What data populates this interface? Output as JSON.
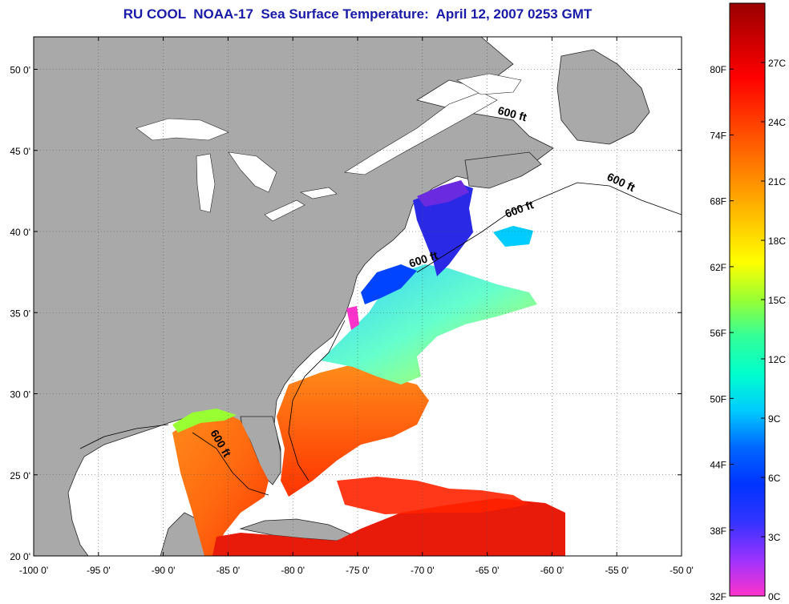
{
  "title": "RU COOL  NOAA-17  Sea Surface Temperature:  April 12, 2007 0253 GMT",
  "map": {
    "lon_range": [
      -100,
      -50
    ],
    "lat_range": [
      20,
      52
    ],
    "lon_ticks": [
      "-100 0'",
      "-95 0'",
      "-90 0'",
      "-85 0'",
      "-80 0'",
      "-75 0'",
      "-70 0'",
      "-65 0'",
      "-60 0'",
      "-55 0'",
      "-50 0'"
    ],
    "lat_ticks": [
      "50 0'",
      "45 0'",
      "40 0'",
      "35 0'",
      "30 0'",
      "25 0'",
      "20 0'"
    ],
    "contour_labels": [
      "600 ft",
      "600 ft",
      "600 ft",
      "600 ft",
      "600 ft"
    ],
    "colors": {
      "land": "#a9a9a9",
      "ocean_nodata": "#ffffff",
      "gridline": "#555555"
    }
  },
  "colorbar": {
    "fahrenheit_labels": [
      "80F",
      "74F",
      "68F",
      "62F",
      "56F",
      "50F",
      "44F",
      "38F",
      "32F"
    ],
    "celsius_labels": [
      "27C",
      "24C",
      "21C",
      "18C",
      "15C",
      "12C",
      "9C",
      "6C",
      "3C",
      "0C"
    ],
    "range_celsius": [
      0,
      30
    ],
    "gradient": [
      "#ff33cc",
      "#9933ff",
      "#3333ff",
      "#0033ff",
      "#0066ff",
      "#00ccff",
      "#00ffcc",
      "#33ff99",
      "#99ff33",
      "#ffff00",
      "#ffcc00",
      "#ff9900",
      "#ff6600",
      "#ff3300",
      "#ff0000",
      "#cc0000",
      "#990000"
    ]
  }
}
